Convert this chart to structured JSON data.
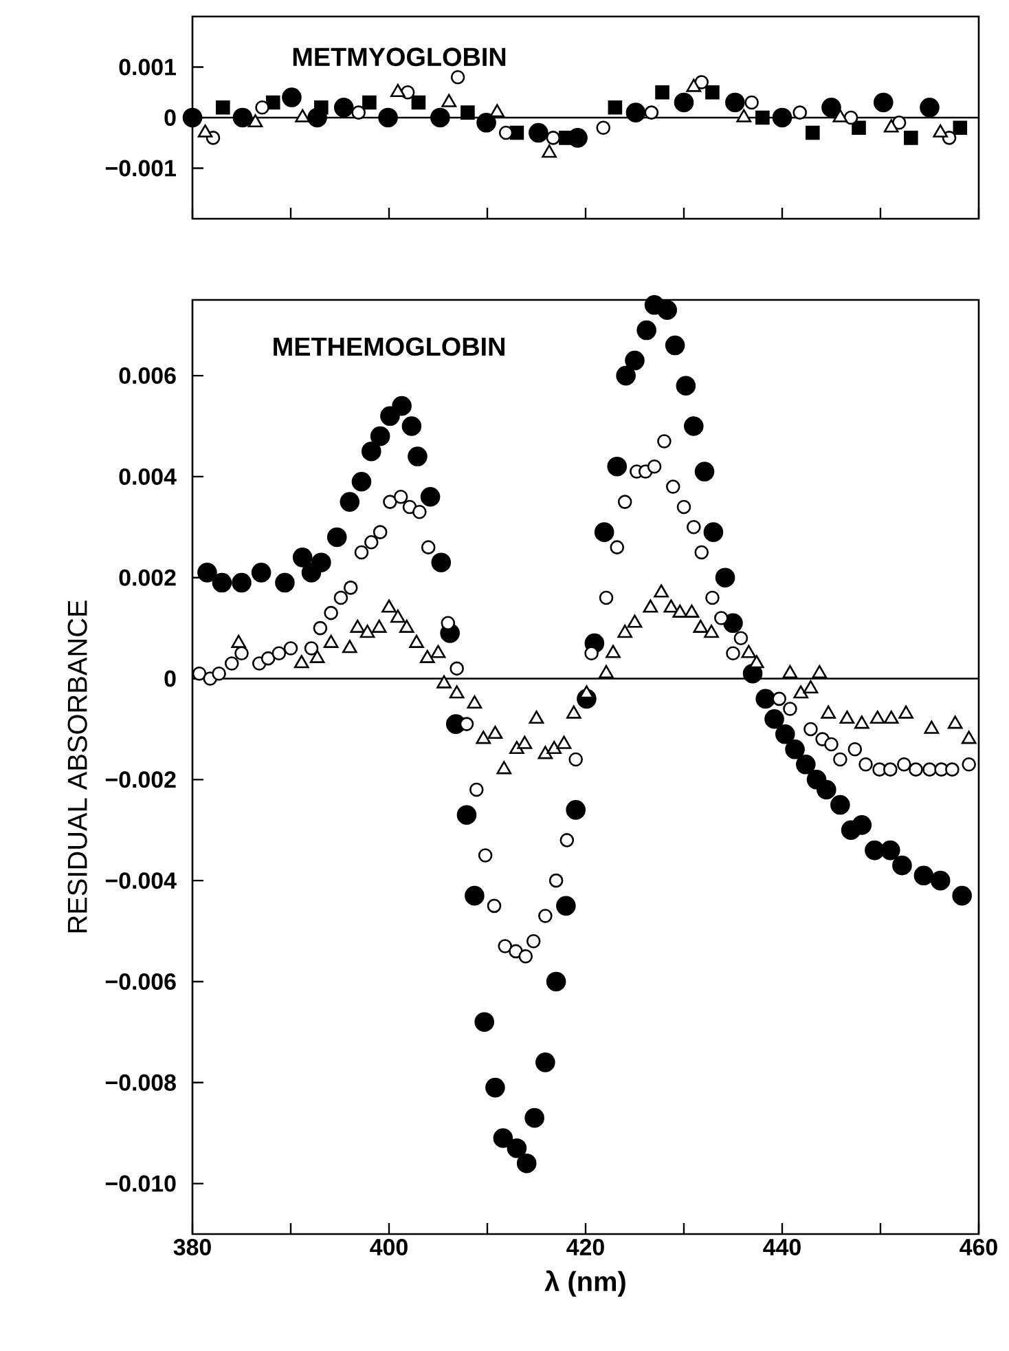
{
  "chart_data": [
    {
      "type": "scatter",
      "title": "METMYOGLOBIN",
      "xlim": [
        380,
        460
      ],
      "ylim": [
        -0.002,
        0.002
      ],
      "tick_labels": "y",
      "xticks": [
        {
          "value": 380,
          "label": null
        },
        {
          "value": 390,
          "label": null
        },
        {
          "value": 400,
          "label": null
        },
        {
          "value": 410,
          "label": null
        },
        {
          "value": 420,
          "label": null
        },
        {
          "value": 430,
          "label": null
        },
        {
          "value": 440,
          "label": null
        },
        {
          "value": 450,
          "label": null
        },
        {
          "value": 460,
          "label": null
        }
      ],
      "yticks": [
        {
          "value": -0.001,
          "label": "−0.001"
        },
        {
          "value": 0,
          "label": "0"
        },
        {
          "value": 0.001,
          "label": "0.001"
        }
      ],
      "ref_lines": [
        {
          "axis": "y",
          "value": 0,
          "color": "#000000"
        }
      ],
      "series": [
        {
          "color": "#000000",
          "marker": "circle",
          "x": [
            380.0,
            385.1,
            390.1,
            392.7,
            395.4,
            399.9,
            405.2,
            409.9,
            415.2,
            419.2,
            425.1,
            430.0,
            435.2,
            440.0,
            445.0,
            450.3,
            455.0
          ],
          "values": [
            0,
            0,
            0.0004,
            0,
            0.0002,
            0,
            0,
            -0.0001,
            -0.0003,
            -0.0004,
            0.0001,
            0.0003,
            0.0003,
            0,
            0.0002,
            0.0003,
            0.0002
          ]
        },
        {
          "color": "#000000",
          "marker": "square",
          "x": [
            383.1,
            388.2,
            393.1,
            398.0,
            403.0,
            408.0,
            413.0,
            418.0,
            423.0,
            427.8,
            432.9,
            438.0,
            443.1,
            447.8,
            453.1,
            458.1
          ],
          "values": [
            0.0002,
            0.0003,
            0.0002,
            0.0003,
            0.0003,
            0.0001,
            -0.0003,
            -0.0004,
            0.0002,
            0.0005,
            0.0005,
            0,
            -0.0003,
            -0.0002,
            -0.0004,
            -0.0002
          ]
        },
        {
          "color": "#ffffff",
          "marker": "circle",
          "x": [
            382.1,
            387.1,
            396.9,
            401.9,
            407.0,
            411.9,
            416.7,
            421.8,
            426.7,
            431.8,
            436.9,
            441.8,
            447.0,
            451.9,
            457.0
          ],
          "values": [
            -0.0004,
            0.0002,
            0.0001,
            0.0005,
            0.0008,
            -0.0003,
            -0.0004,
            -0.0002,
            0.0001,
            0.0007,
            0.0003,
            0.0001,
            0,
            -0.0001,
            -0.0004
          ]
        },
        {
          "color": "#ffffff",
          "marker": "triangle",
          "x": [
            381.3,
            386.4,
            391.2,
            400.9,
            406.1,
            411.0,
            416.3,
            431.0,
            436.1,
            445.9,
            451.1,
            456.1
          ],
          "values": [
            -0.0003,
            -0.0001,
            0,
            0.0005,
            0.0003,
            0.0001,
            -0.0007,
            0.0006,
            0,
            0,
            -0.0002,
            -0.0003
          ]
        }
      ]
    },
    {
      "type": "scatter",
      "title": "METHEMOGLOBIN",
      "xlabel": "λ (nm)",
      "ylabel": "RESIDUAL ABSORBANCE",
      "xlim": [
        380,
        460
      ],
      "ylim": [
        -0.011,
        0.0075
      ],
      "xticks": [
        {
          "value": 380,
          "label": "380"
        },
        {
          "value": 390,
          "label": null
        },
        {
          "value": 400,
          "label": "400"
        },
        {
          "value": 410,
          "label": null
        },
        {
          "value": 420,
          "label": "420"
        },
        {
          "value": 430,
          "label": null
        },
        {
          "value": 440,
          "label": "440"
        },
        {
          "value": 450,
          "label": null
        },
        {
          "value": 460,
          "label": "460"
        }
      ],
      "yticks": [
        {
          "value": 0.006,
          "label": "0.006"
        },
        {
          "value": 0.004,
          "label": "0.004"
        },
        {
          "value": 0.002,
          "label": "0.002"
        },
        {
          "value": 0,
          "label": "0"
        },
        {
          "value": -0.002,
          "label": "−0.002"
        },
        {
          "value": -0.004,
          "label": "−0.004"
        },
        {
          "value": -0.006,
          "label": "−0.006"
        },
        {
          "value": -0.008,
          "label": "−0.008"
        },
        {
          "value": -0.01,
          "label": "−0.010"
        }
      ],
      "ref_lines": [
        {
          "axis": "y",
          "value": 0,
          "color": "#000000"
        }
      ],
      "series": [
        {
          "color": "#000000",
          "marker": "circle",
          "x": [
            381.5,
            383.0,
            385.0,
            387.0,
            389.4,
            391.2,
            392.1,
            393.1,
            394.7,
            396.0,
            397.2,
            398.2,
            399.1,
            400.1,
            401.3,
            402.3,
            402.9,
            404.2,
            405.3,
            406.2,
            406.8,
            407.9,
            408.7,
            409.7,
            410.8,
            411.6,
            413.0,
            414.0,
            414.8,
            415.9,
            417.0,
            418.0,
            419.0,
            420.1,
            420.9,
            421.9,
            423.2,
            424.1,
            425.0,
            426.2,
            427.0,
            428.3,
            429.1,
            430.2,
            431.0,
            432.1,
            433.0,
            434.2,
            435.0,
            437.0,
            438.3,
            439.2,
            440.3,
            441.3,
            442.4,
            443.5,
            444.5,
            445.9,
            447.0,
            448.1,
            449.4,
            451.0,
            452.2,
            454.4,
            456.1,
            458.3
          ],
          "values": [
            0.0021,
            0.0019,
            0.0019,
            0.0021,
            0.0019,
            0.0024,
            0.0021,
            0.0023,
            0.0028,
            0.0035,
            0.0039,
            0.0045,
            0.0048,
            0.0052,
            0.0054,
            0.005,
            0.0044,
            0.0036,
            0.0023,
            0.0009,
            -0.0009,
            -0.0027,
            -0.0043,
            -0.0068,
            -0.0081,
            -0.0091,
            -0.0093,
            -0.0096,
            -0.0087,
            -0.0076,
            -0.006,
            -0.0045,
            -0.0026,
            -0.0004,
            0.0007,
            0.0029,
            0.0042,
            0.006,
            0.0063,
            0.0069,
            0.0074,
            0.0073,
            0.0066,
            0.0058,
            0.005,
            0.0041,
            0.0029,
            0.002,
            0.0011,
            0.0001,
            -0.0004,
            -0.0008,
            -0.0011,
            -0.0014,
            -0.0017,
            -0.002,
            -0.0022,
            -0.0025,
            -0.003,
            -0.0029,
            -0.0034,
            -0.0034,
            -0.0037,
            -0.0039,
            -0.004,
            -0.0043
          ]
        },
        {
          "color": "#ffffff",
          "marker": "circle",
          "x": [
            380.7,
            381.8,
            382.7,
            384.0,
            385.0,
            386.8,
            387.7,
            388.8,
            390.0,
            392.1,
            393.0,
            394.1,
            395.1,
            396.1,
            397.2,
            398.2,
            399.1,
            400.1,
            401.2,
            402.1,
            403.1,
            404.0,
            406.0,
            406.9,
            407.9,
            408.9,
            409.8,
            410.7,
            411.8,
            412.9,
            413.9,
            414.7,
            415.9,
            417.0,
            418.1,
            419.0,
            420.6,
            422.1,
            423.2,
            424.0,
            425.2,
            426.1,
            427.0,
            428.0,
            428.9,
            430.0,
            431.0,
            431.8,
            432.9,
            433.8,
            435.0,
            435.8,
            439.7,
            440.8,
            442.9,
            444.1,
            445.0,
            445.9,
            447.4,
            448.5,
            449.9,
            451.0,
            452.4,
            453.6,
            455.0,
            456.2,
            457.3,
            459.0
          ],
          "values": [
            0.0001,
            0,
            0.0001,
            0.0003,
            0.0005,
            0.0003,
            0.0004,
            0.0005,
            0.0006,
            0.0006,
            0.001,
            0.0013,
            0.0016,
            0.0018,
            0.0025,
            0.0027,
            0.0029,
            0.0035,
            0.0036,
            0.0034,
            0.0033,
            0.0026,
            0.0011,
            0.0002,
            -0.0009,
            -0.0022,
            -0.0035,
            -0.0045,
            -0.0053,
            -0.0054,
            -0.0055,
            -0.0052,
            -0.0047,
            -0.004,
            -0.0032,
            -0.0016,
            0.0005,
            0.0016,
            0.0026,
            0.0035,
            0.0041,
            0.0041,
            0.0042,
            0.0047,
            0.0038,
            0.0034,
            0.003,
            0.0025,
            0.0016,
            0.0012,
            0.0005,
            0.0008,
            -0.0004,
            -0.0006,
            -0.001,
            -0.0012,
            -0.0013,
            -0.0016,
            -0.0014,
            -0.0017,
            -0.0018,
            -0.0018,
            -0.0017,
            -0.0018,
            -0.0018,
            -0.0018,
            -0.0018,
            -0.0017
          ]
        },
        {
          "color": "#ffffff",
          "marker": "triangle",
          "x": [
            384.7,
            391.1,
            392.7,
            394.1,
            396.0,
            396.8,
            397.8,
            399.0,
            400.0,
            400.9,
            401.8,
            402.8,
            403.9,
            405.0,
            405.6,
            406.9,
            408.7,
            409.6,
            410.8,
            411.7,
            413.0,
            413.8,
            415.0,
            415.9,
            416.8,
            417.8,
            418.8,
            420.1,
            422.1,
            422.8,
            424.0,
            425.0,
            426.6,
            427.7,
            428.7,
            429.6,
            430.8,
            431.7,
            432.8,
            436.6,
            437.4,
            440.8,
            441.9,
            442.9,
            443.8,
            444.7,
            446.6,
            448.1,
            449.7,
            451.1,
            452.6,
            455.2,
            457.6,
            459.0
          ],
          "values": [
            0.0007,
            0.0003,
            0.0004,
            0.0007,
            0.0006,
            0.001,
            0.0009,
            0.001,
            0.0014,
            0.0012,
            0.001,
            0.0007,
            0.0004,
            0.0005,
            -0.0001,
            -0.0003,
            -0.0005,
            -0.0012,
            -0.0011,
            -0.0018,
            -0.0014,
            -0.0013,
            -0.0008,
            -0.0015,
            -0.0014,
            -0.0013,
            -0.0007,
            -0.0003,
            0.0001,
            0.0005,
            0.0009,
            0.0011,
            0.0014,
            0.0017,
            0.0014,
            0.0013,
            0.0013,
            0.001,
            0.0009,
            0.0005,
            0.0003,
            0.0001,
            -0.0003,
            -0.0002,
            0.0001,
            -0.0007,
            -0.0008,
            -0.0009,
            -0.0008,
            -0.0008,
            -0.0007,
            -0.001,
            -0.0009,
            -0.0012
          ]
        }
      ]
    }
  ]
}
